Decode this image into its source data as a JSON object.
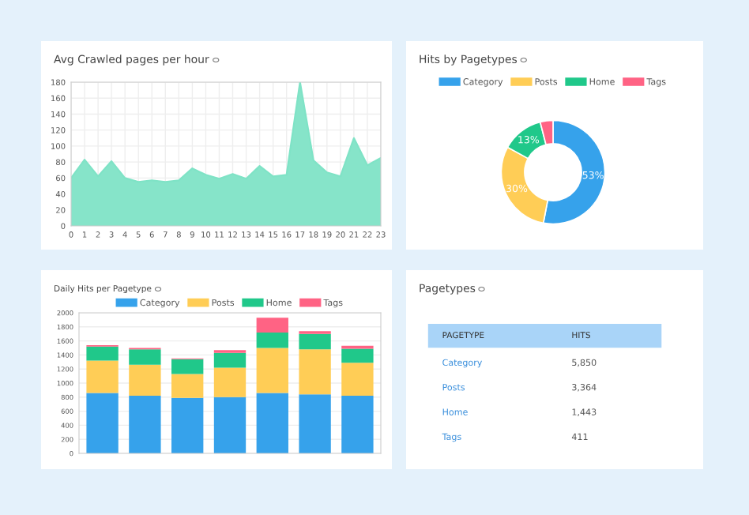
{
  "chart_data": [
    {
      "type": "area",
      "title": "Avg Crawled pages per hour",
      "x": [
        0,
        1,
        2,
        3,
        4,
        5,
        6,
        7,
        8,
        9,
        10,
        11,
        12,
        13,
        14,
        15,
        16,
        17,
        18,
        19,
        20,
        21,
        22,
        23
      ],
      "values": [
        60,
        83,
        62,
        81,
        60,
        55,
        57,
        55,
        57,
        72,
        64,
        59,
        65,
        59,
        75,
        62,
        64,
        180,
        82,
        67,
        62,
        110,
        76,
        85
      ],
      "color": "#7fe3c6",
      "xlim": [
        0,
        23
      ],
      "xticks": [
        0,
        1,
        2,
        3,
        4,
        5,
        6,
        7,
        8,
        9,
        10,
        11,
        12,
        13,
        14,
        15,
        16,
        17,
        18,
        19,
        20,
        21,
        22,
        23
      ],
      "ylim": [
        0,
        180
      ],
      "yticks": [
        0,
        20,
        40,
        60,
        80,
        100,
        120,
        140,
        160,
        180
      ],
      "grid": true,
      "marker": "none"
    },
    {
      "type": "donut",
      "title": "Hits by Pagetypes",
      "categories": [
        "Category",
        "Posts",
        "Home",
        "Tags"
      ],
      "values": [
        53,
        30,
        13,
        4
      ],
      "colors": [
        "#36a2eb",
        "#ffcd56",
        "#20c88a",
        "#ff6384"
      ],
      "value_labels": [
        "53%",
        "30%",
        "13%",
        null
      ],
      "legend": "top"
    },
    {
      "type": "bar",
      "title": "Daily Hits per Pagetype",
      "stacked": true,
      "categories": [
        null,
        null,
        null,
        null,
        null,
        null,
        null
      ],
      "series": [
        {
          "name": "Category",
          "color": "#36a2eb",
          "values": [
            860,
            820,
            790,
            800,
            860,
            840,
            820
          ]
        },
        {
          "name": "Posts",
          "color": "#ffcd56",
          "values": [
            460,
            440,
            340,
            420,
            640,
            640,
            470
          ]
        },
        {
          "name": "Home",
          "color": "#20c88a",
          "values": [
            200,
            220,
            210,
            210,
            220,
            220,
            200
          ]
        },
        {
          "name": "Tags",
          "color": "#ff6384",
          "values": [
            20,
            20,
            10,
            40,
            210,
            40,
            40
          ]
        }
      ],
      "ylim": [
        0,
        2000
      ],
      "yticks": [
        0,
        200,
        400,
        600,
        800,
        1000,
        1200,
        1400,
        1600,
        1800,
        2000
      ],
      "grid": "y",
      "legend": "top"
    },
    {
      "type": "other",
      "title": "Pagetypes",
      "annotations": [
        "PAGETYPE",
        "HITS"
      ],
      "categories": [
        "Category",
        "Posts",
        "Home",
        "Tags"
      ],
      "values": [
        5850,
        3364,
        1443,
        411
      ],
      "value_labels": [
        "5,850",
        "3,364",
        "1,443",
        "411"
      ]
    }
  ]
}
